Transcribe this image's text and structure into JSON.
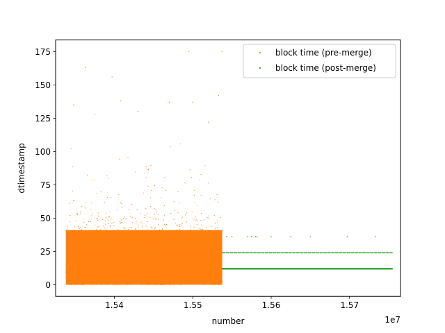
{
  "chart_data": {
    "type": "scatter",
    "xlabel": "number",
    "ylabel": "dtimestamp",
    "x_offset_label": "1e7",
    "xlim": [
      15325000,
      15765000
    ],
    "ylim": [
      -8.75,
      183.75
    ],
    "x_ticks": [
      15400000,
      15500000,
      15600000,
      15700000
    ],
    "x_tick_labels": [
      "1.54",
      "1.55",
      "1.56",
      "1.57"
    ],
    "y_ticks": [
      0,
      25,
      50,
      75,
      100,
      125,
      150,
      175
    ],
    "y_tick_labels": [
      "0",
      "25",
      "50",
      "75",
      "100",
      "125",
      "150",
      "175"
    ],
    "legend_position": "top-right",
    "grid": false,
    "series": [
      {
        "name": "block time (pre-merge)",
        "color": "#ff7f0e",
        "x_range": [
          15338000,
          15537546
        ],
        "typical_y_range": [
          0,
          50
        ],
        "outliers": [
          {
            "x": 15363000,
            "y": 163
          },
          {
            "x": 15397000,
            "y": 156
          },
          {
            "x": 15348000,
            "y": 135
          },
          {
            "x": 15408000,
            "y": 138
          },
          {
            "x": 15430000,
            "y": 130
          },
          {
            "x": 15470000,
            "y": 137
          },
          {
            "x": 15495000,
            "y": 175
          },
          {
            "x": 15537000,
            "y": 175
          },
          {
            "x": 15533000,
            "y": 142
          },
          {
            "x": 15500000,
            "y": 137
          },
          {
            "x": 15520000,
            "y": 122
          },
          {
            "x": 15375000,
            "y": 128
          }
        ]
      },
      {
        "name": "block time (post-merge)",
        "color": "#2ca02c",
        "x_range": [
          15537394,
          15755000
        ],
        "levels": [
          12,
          24,
          36
        ],
        "sparse_points": [
          {
            "x": 15543000,
            "y": 36
          },
          {
            "x": 15550000,
            "y": 36
          },
          {
            "x": 15570000,
            "y": 36
          },
          {
            "x": 15575000,
            "y": 36
          },
          {
            "x": 15580000,
            "y": 36
          },
          {
            "x": 15582000,
            "y": 36
          },
          {
            "x": 15600000,
            "y": 36
          },
          {
            "x": 15625000,
            "y": 36
          },
          {
            "x": 15650000,
            "y": 36
          },
          {
            "x": 15697000,
            "y": 36
          },
          {
            "x": 15733000,
            "y": 36
          }
        ]
      }
    ]
  }
}
